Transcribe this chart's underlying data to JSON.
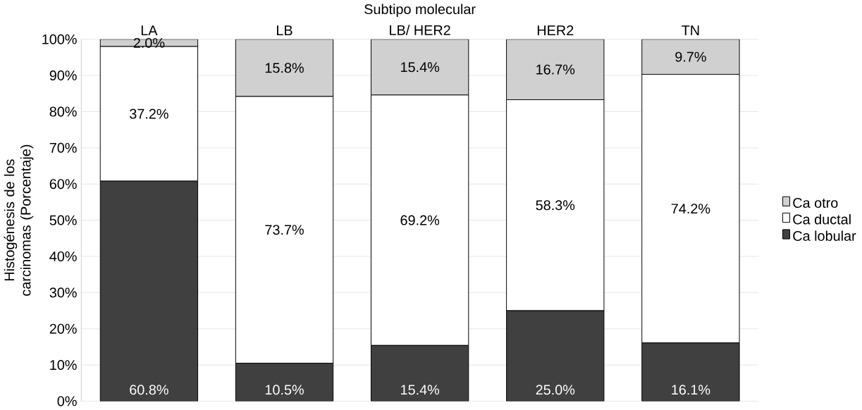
{
  "chart_data": {
    "type": "bar",
    "stacked": true,
    "xlabel": "Subtipo molecular",
    "ylabel": "Histogénesis de los carcinomas (Porcentaje)",
    "categories": [
      "LA",
      "LB",
      "LB/ HER2",
      "HER2",
      "TN"
    ],
    "series": [
      {
        "name": "Ca lobular",
        "color": "#404040",
        "values": [
          60.8,
          10.5,
          15.4,
          25.0,
          16.1
        ],
        "value_labels": [
          "60.8%",
          "10.5%",
          "15.4%",
          "25.0%",
          "16.1%"
        ]
      },
      {
        "name": "Ca ductal",
        "color": "#ffffff",
        "values": [
          37.2,
          73.7,
          69.2,
          58.3,
          74.2
        ],
        "value_labels": [
          "37.2%",
          "73.7%",
          "69.2%",
          "58.3%",
          "74.2%"
        ]
      },
      {
        "name": "Ca otro",
        "color": "#d0d0d0",
        "values": [
          2.0,
          15.8,
          15.4,
          16.7,
          9.7
        ],
        "value_labels": [
          "2.0%",
          "15.8%",
          "15.4%",
          "16.7%",
          "9.7%"
        ]
      }
    ],
    "ylim": [
      0,
      100
    ],
    "yticks": [
      {
        "value": 0,
        "label": "0%"
      },
      {
        "value": 10,
        "label": "10%"
      },
      {
        "value": 20,
        "label": "20%"
      },
      {
        "value": 30,
        "label": "30%"
      },
      {
        "value": 40,
        "label": "40%"
      },
      {
        "value": 50,
        "label": "50%"
      },
      {
        "value": 60,
        "label": "60%"
      },
      {
        "value": 70,
        "label": "70%"
      },
      {
        "value": 80,
        "label": "80%"
      },
      {
        "value": 90,
        "label": "90%"
      },
      {
        "value": 100,
        "label": "100%"
      }
    ],
    "grid": "y",
    "legend": "right"
  }
}
